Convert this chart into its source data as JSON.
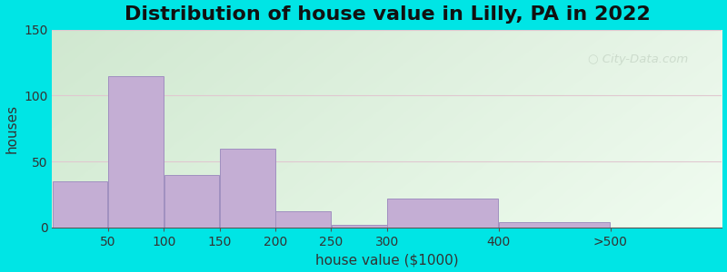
{
  "title": "Distribution of house value in Lilly, PA in 2022",
  "xlabel": "house value ($1000)",
  "ylabel": "houses",
  "bin_edges": [
    0,
    50,
    100,
    150,
    200,
    250,
    300,
    400,
    500,
    600
  ],
  "bin_widths": [
    50,
    50,
    50,
    50,
    50,
    50,
    100,
    100,
    100
  ],
  "bar_heights": [
    35,
    115,
    40,
    60,
    12,
    2,
    22,
    4,
    0
  ],
  "tick_positions": [
    50,
    100,
    150,
    200,
    250,
    300,
    400,
    500
  ],
  "tick_labels": [
    "50",
    "100",
    "150",
    "200",
    "250",
    "300",
    "400",
    ">500"
  ],
  "bar_color": "#c4aed4",
  "bar_edgecolor": "#a090c0",
  "ylim": [
    0,
    150
  ],
  "yticks": [
    0,
    50,
    100,
    150
  ],
  "bg_outer": "#00e5e5",
  "bg_inner_left": "#d0e8d0",
  "bg_inner_right": "#e8f5e8",
  "bg_bottom": "#c8e8d8",
  "title_fontsize": 16,
  "axis_label_fontsize": 11,
  "tick_fontsize": 10,
  "watermark_text": "City-Data.com",
  "watermark_color": "#b8c8b8",
  "watermark_alpha": 0.55,
  "xlim_left": 0,
  "xlim_right": 600
}
